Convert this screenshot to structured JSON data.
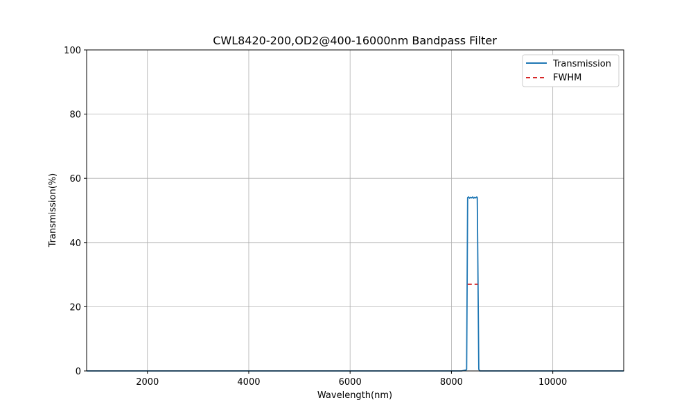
{
  "chart_data": {
    "type": "line",
    "title": "CWL8420-200,OD2@400-16000nm Bandpass Filter",
    "xlabel": "Wavelength(nm)",
    "ylabel": "Transmission(%)",
    "xlim": [
      800,
      11400
    ],
    "ylim": [
      0,
      100
    ],
    "x_ticks": [
      2000,
      4000,
      6000,
      8000,
      10000
    ],
    "y_ticks": [
      0,
      20,
      40,
      60,
      80,
      100
    ],
    "grid": true,
    "legend_position": "top-right",
    "series": [
      {
        "name": "Transmission",
        "color": "#1f77b4",
        "style": "solid",
        "points": [
          [
            800,
            0
          ],
          [
            8200,
            0
          ],
          [
            8290,
            0.3
          ],
          [
            8300,
            0.5
          ],
          [
            8320,
            54
          ],
          [
            8340,
            54.2
          ],
          [
            8360,
            53.8
          ],
          [
            8380,
            54.1
          ],
          [
            8400,
            53.9
          ],
          [
            8420,
            54.2
          ],
          [
            8440,
            53.8
          ],
          [
            8460,
            54.1
          ],
          [
            8480,
            53.9
          ],
          [
            8500,
            54.2
          ],
          [
            8510,
            54
          ],
          [
            8540,
            0.5
          ],
          [
            8560,
            0
          ],
          [
            11400,
            0
          ]
        ]
      },
      {
        "name": "FWHM",
        "color": "#d62728",
        "style": "dashed",
        "points": [
          [
            8320,
            27
          ],
          [
            8520,
            27
          ]
        ]
      }
    ]
  }
}
